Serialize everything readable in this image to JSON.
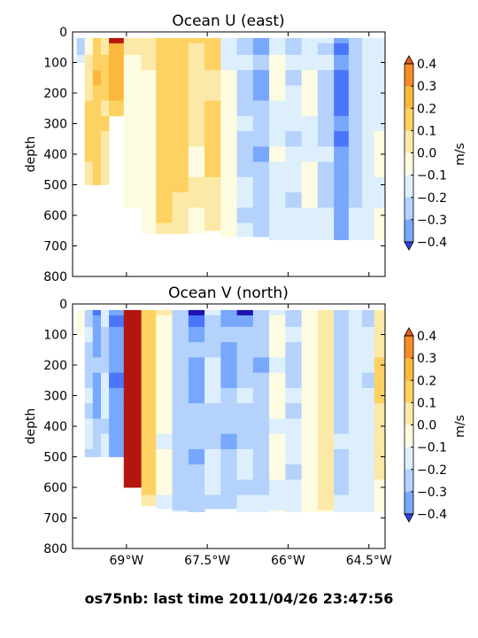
{
  "figure_title": "os75nb: last time 2011/04/26 23:47:56",
  "colorbar": {
    "label": "m/s",
    "ticks": [
      "0.4",
      "0.3",
      "0.2",
      "0.1",
      "0.0",
      "−0.1",
      "−0.2",
      "−0.3",
      "−0.4"
    ],
    "level_colors": [
      "#2b44ee",
      "#4a76fb",
      "#78a8fd",
      "#b4d2fc",
      "#ddeffc",
      "#fefce0",
      "#fde9a7",
      "#fdd262",
      "#fcb73d",
      "#f78b27",
      "#eb5a1b"
    ],
    "under_color": "#1e13b0",
    "over_color": "#b5150f"
  },
  "chart_data": [
    {
      "type": "heatmap",
      "title": "Ocean U (east)",
      "xlabel": "",
      "ylabel": "depth",
      "x_tick_labels": [],
      "y_tick_labels": [
        "0",
        "100",
        "200",
        "300",
        "400",
        "500",
        "600",
        "700",
        "800"
      ],
      "xlim": [
        -70.0,
        -64.2
      ],
      "ylim": [
        800,
        0
      ],
      "units": "m/s",
      "levels": [
        -0.4,
        -0.3,
        -0.2,
        -0.1,
        0.0,
        0.1,
        0.2,
        0.3,
        0.4
      ],
      "x": [
        -69.85,
        -69.7,
        -69.55,
        -69.4,
        -69.25,
        -68.85,
        -68.6,
        -68.3,
        -68.0,
        -67.7,
        -67.4,
        -67.1,
        -66.8,
        -66.5,
        -66.2,
        -65.9,
        -65.6,
        -65.3,
        -65.0,
        -64.75,
        -64.5,
        -64.3
      ],
      "depth": [
        25,
        50,
        100,
        150,
        200,
        250,
        300,
        350,
        400,
        450,
        500,
        550,
        600,
        650,
        700
      ],
      "max_depth": [
        100,
        500,
        500,
        500,
        280,
        590,
        660,
        660,
        660,
        660,
        650,
        670,
        670,
        670,
        680,
        680,
        680,
        680,
        680,
        680,
        680,
        680
      ],
      "columns": [
        [
          -0.15,
          -0.12,
          -0.05,
          null,
          null,
          null,
          null,
          null,
          null,
          null,
          null,
          null,
          null,
          null,
          null
        ],
        [
          0.05,
          0.08,
          0.12,
          0.15,
          0.18,
          0.2,
          0.22,
          0.2,
          0.2,
          0.18,
          0.18,
          null,
          null,
          null,
          null
        ],
        [
          0.25,
          0.28,
          0.3,
          0.32,
          0.3,
          0.28,
          0.3,
          0.28,
          0.25,
          0.22,
          0.2,
          null,
          null,
          null,
          null
        ],
        [
          0.15,
          0.18,
          0.2,
          0.22,
          0.2,
          0.18,
          0.2,
          0.18,
          0.16,
          0.14,
          0.12,
          null,
          null,
          null,
          null
        ],
        [
          0.4,
          0.38,
          0.35,
          0.35,
          0.32,
          0.3,
          null,
          null,
          null,
          null,
          null,
          null,
          null,
          null,
          null
        ],
        [
          0.12,
          0.1,
          0.08,
          0.05,
          0.03,
          0.02,
          0.05,
          0.05,
          0.03,
          0.02,
          0.04,
          0.05,
          null,
          null,
          null
        ],
        [
          0.15,
          0.12,
          0.1,
          0.08,
          0.06,
          0.05,
          0.05,
          0.04,
          0.03,
          0.05,
          0.06,
          0.06,
          0.05,
          0.04,
          null
        ],
        [
          0.25,
          0.22,
          0.2,
          0.22,
          0.24,
          0.25,
          0.26,
          0.25,
          0.24,
          0.22,
          0.22,
          0.2,
          0.2,
          0.18,
          null
        ],
        [
          0.3,
          0.28,
          0.25,
          0.25,
          0.24,
          0.24,
          0.25,
          0.24,
          0.22,
          0.2,
          0.2,
          0.18,
          0.15,
          0.12,
          null
        ],
        [
          0.2,
          0.18,
          0.15,
          0.12,
          0.1,
          0.12,
          0.12,
          0.1,
          0.08,
          0.08,
          0.1,
          0.1,
          0.08,
          0.06,
          null
        ],
        [
          0.22,
          0.2,
          0.2,
          0.18,
          0.18,
          0.2,
          0.2,
          0.22,
          0.24,
          0.2,
          0.18,
          0.16,
          0.15,
          0.12,
          null
        ],
        [
          -0.05,
          -0.05,
          -0.03,
          0.02,
          0.05,
          0.05,
          0.08,
          0.05,
          0.03,
          0.02,
          0.05,
          0.05,
          0.03,
          0.02,
          null
        ],
        [
          -0.15,
          -0.12,
          -0.1,
          -0.12,
          -0.15,
          -0.12,
          -0.1,
          -0.12,
          -0.15,
          -0.12,
          -0.1,
          -0.1,
          -0.12,
          -0.1,
          null
        ],
        [
          -0.3,
          -0.25,
          -0.2,
          -0.22,
          -0.25,
          -0.2,
          -0.18,
          -0.2,
          -0.22,
          -0.2,
          -0.18,
          -0.15,
          -0.15,
          -0.12,
          null
        ],
        [
          -0.05,
          -0.03,
          0.0,
          0.02,
          0.0,
          -0.03,
          -0.05,
          -0.03,
          0.0,
          -0.02,
          -0.04,
          -0.05,
          -0.03,
          -0.02,
          -0.01
        ],
        [
          -0.15,
          -0.12,
          -0.1,
          -0.12,
          -0.1,
          -0.08,
          -0.1,
          -0.12,
          -0.1,
          -0.08,
          -0.1,
          -0.12,
          -0.1,
          -0.08,
          -0.08
        ],
        [
          -0.05,
          -0.03,
          -0.02,
          0.0,
          0.02,
          0.0,
          -0.02,
          -0.04,
          -0.02,
          0.0,
          0.02,
          0.0,
          -0.02,
          -0.03,
          -0.02
        ],
        [
          -0.1,
          -0.12,
          -0.1,
          -0.12,
          -0.15,
          -0.18,
          -0.15,
          -0.12,
          -0.1,
          -0.12,
          -0.15,
          -0.12,
          -0.1,
          -0.1,
          -0.08
        ],
        [
          -0.3,
          -0.32,
          -0.3,
          -0.32,
          -0.35,
          -0.32,
          -0.3,
          -0.32,
          -0.3,
          -0.28,
          -0.3,
          -0.28,
          -0.26,
          -0.25,
          -0.22
        ],
        [
          -0.2,
          -0.18,
          -0.15,
          -0.18,
          -0.2,
          -0.18,
          -0.15,
          -0.12,
          -0.15,
          -0.18,
          -0.15,
          -0.12,
          -0.1,
          -0.1,
          -0.08
        ],
        [
          -0.08,
          -0.06,
          -0.05,
          -0.04,
          -0.05,
          -0.06,
          -0.05,
          -0.04,
          -0.03,
          -0.04,
          -0.05,
          -0.04,
          -0.03,
          -0.03,
          -0.02
        ],
        [
          -0.05,
          -0.04,
          -0.03,
          -0.02,
          -0.03,
          -0.04,
          -0.02,
          0.0,
          0.02,
          0.0,
          -0.02,
          -0.02,
          0.0,
          0.02,
          0.0
        ]
      ]
    },
    {
      "type": "heatmap",
      "title": "Ocean V (north)",
      "xlabel": "",
      "ylabel": "depth",
      "x_tick_labels": [
        "69°W",
        "67.5°W",
        "66°W",
        "64.5°W"
      ],
      "x_tick_values": [
        -69.0,
        -67.5,
        -66.0,
        -64.5
      ],
      "y_tick_labels": [
        "0",
        "100",
        "200",
        "300",
        "400",
        "500",
        "600",
        "700",
        "800"
      ],
      "xlim": [
        -70.0,
        -64.2
      ],
      "ylim": [
        800,
        0
      ],
      "units": "m/s",
      "levels": [
        -0.4,
        -0.3,
        -0.2,
        -0.1,
        0.0,
        0.1,
        0.2,
        0.3,
        0.4
      ],
      "x": [
        -69.85,
        -69.7,
        -69.55,
        -69.4,
        -69.25,
        -68.85,
        -68.6,
        -68.3,
        -68.0,
        -67.7,
        -67.4,
        -67.1,
        -66.8,
        -66.5,
        -66.2,
        -65.9,
        -65.6,
        -65.3,
        -65.0,
        -64.75,
        -64.5,
        -64.3
      ],
      "depth": [
        25,
        50,
        100,
        150,
        200,
        250,
        300,
        350,
        400,
        450,
        500,
        550,
        600,
        650,
        700
      ],
      "max_depth": [
        100,
        500,
        500,
        500,
        500,
        600,
        660,
        670,
        680,
        680,
        670,
        670,
        680,
        680,
        680,
        680,
        680,
        680,
        680,
        680,
        680,
        680
      ],
      "columns": [
        [
          0.02,
          0.03,
          0.05,
          null,
          null,
          null,
          null,
          null,
          null,
          null,
          null,
          null,
          null,
          null,
          null
        ],
        [
          -0.15,
          -0.12,
          -0.1,
          -0.12,
          -0.15,
          -0.12,
          -0.1,
          -0.12,
          -0.1,
          -0.1,
          -0.12,
          null,
          null,
          null,
          null
        ],
        [
          -0.35,
          -0.3,
          -0.25,
          -0.22,
          -0.2,
          -0.22,
          -0.25,
          -0.22,
          -0.2,
          -0.18,
          -0.2,
          null,
          null,
          null,
          null
        ],
        [
          -0.1,
          -0.08,
          -0.12,
          -0.15,
          -0.12,
          -0.1,
          -0.08,
          -0.1,
          -0.12,
          -0.1,
          -0.08,
          null,
          null,
          null,
          null
        ],
        [
          -0.3,
          -0.32,
          -0.3,
          -0.28,
          -0.3,
          -0.32,
          -0.3,
          -0.28,
          -0.3,
          -0.3,
          -0.3,
          null,
          null,
          null,
          null
        ],
        [
          0.55,
          0.55,
          0.52,
          0.5,
          0.5,
          0.52,
          0.55,
          0.55,
          0.52,
          0.5,
          0.5,
          0.5,
          0.45,
          null,
          null
        ],
        [
          0.3,
          0.28,
          0.25,
          0.25,
          0.28,
          0.3,
          0.28,
          0.25,
          0.22,
          0.2,
          0.22,
          0.25,
          0.2,
          0.15,
          null
        ],
        [
          0.1,
          0.08,
          0.05,
          0.02,
          0.0,
          0.02,
          0.05,
          0.03,
          0.0,
          -0.02,
          0.0,
          0.02,
          0.0,
          -0.02,
          null
        ],
        [
          -0.15,
          -0.12,
          -0.15,
          -0.18,
          -0.2,
          -0.18,
          -0.15,
          -0.12,
          -0.15,
          -0.18,
          -0.2,
          -0.18,
          -0.15,
          -0.12,
          -0.1
        ],
        [
          -0.45,
          -0.35,
          -0.25,
          -0.2,
          -0.22,
          -0.25,
          -0.22,
          -0.2,
          -0.18,
          -0.2,
          -0.22,
          -0.2,
          -0.18,
          -0.15,
          -0.12
        ],
        [
          -0.1,
          -0.12,
          -0.15,
          -0.12,
          -0.1,
          -0.08,
          -0.1,
          -0.12,
          -0.15,
          -0.12,
          -0.1,
          -0.08,
          -0.1,
          -0.12,
          null
        ],
        [
          -0.25,
          -0.22,
          -0.2,
          -0.22,
          -0.25,
          -0.22,
          -0.2,
          -0.18,
          -0.2,
          -0.22,
          -0.2,
          -0.18,
          -0.15,
          -0.12,
          null
        ],
        [
          -0.45,
          -0.3,
          -0.15,
          -0.12,
          -0.15,
          -0.12,
          -0.1,
          -0.12,
          -0.15,
          -0.12,
          -0.1,
          -0.1,
          -0.12,
          -0.1,
          -0.08
        ],
        [
          -0.12,
          -0.15,
          -0.18,
          -0.2,
          -0.22,
          -0.2,
          -0.18,
          -0.15,
          -0.12,
          -0.15,
          -0.18,
          -0.15,
          -0.12,
          -0.1,
          -0.08
        ],
        [
          -0.02,
          0.0,
          0.02,
          0.0,
          -0.02,
          0.0,
          0.02,
          0.0,
          -0.02,
          0.0,
          0.02,
          0.0,
          -0.02,
          -0.01,
          0.0
        ],
        [
          -0.15,
          -0.12,
          -0.1,
          -0.12,
          -0.15,
          -0.12,
          -0.1,
          -0.12,
          -0.1,
          -0.08,
          -0.1,
          -0.12,
          -0.1,
          -0.08,
          -0.06
        ],
        [
          0.05,
          0.08,
          0.05,
          0.03,
          0.05,
          0.08,
          0.06,
          0.05,
          0.04,
          0.05,
          0.06,
          0.05,
          0.04,
          0.03,
          0.02
        ],
        [
          0.12,
          0.15,
          0.15,
          0.12,
          0.14,
          0.16,
          0.15,
          0.14,
          0.13,
          0.14,
          0.15,
          0.14,
          0.12,
          0.1,
          0.08
        ],
        [
          -0.12,
          -0.15,
          -0.18,
          -0.15,
          -0.12,
          -0.15,
          -0.18,
          -0.15,
          -0.12,
          -0.1,
          -0.12,
          -0.15,
          -0.12,
          -0.1,
          -0.08
        ],
        [
          -0.05,
          -0.08,
          -0.06,
          -0.05,
          -0.04,
          -0.05,
          -0.06,
          -0.05,
          -0.04,
          -0.05,
          -0.06,
          -0.05,
          -0.04,
          -0.03,
          -0.02
        ],
        [
          -0.2,
          -0.15,
          -0.1,
          -0.08,
          -0.1,
          -0.12,
          -0.1,
          -0.08,
          -0.06,
          -0.08,
          -0.1,
          -0.08,
          -0.06,
          -0.05,
          -0.04
        ],
        [
          0.15,
          0.15,
          0.16,
          0.18,
          0.2,
          0.22,
          0.2,
          0.18,
          0.16,
          0.15,
          0.12,
          0.1,
          0.08,
          0.06,
          0.05
        ]
      ]
    }
  ]
}
